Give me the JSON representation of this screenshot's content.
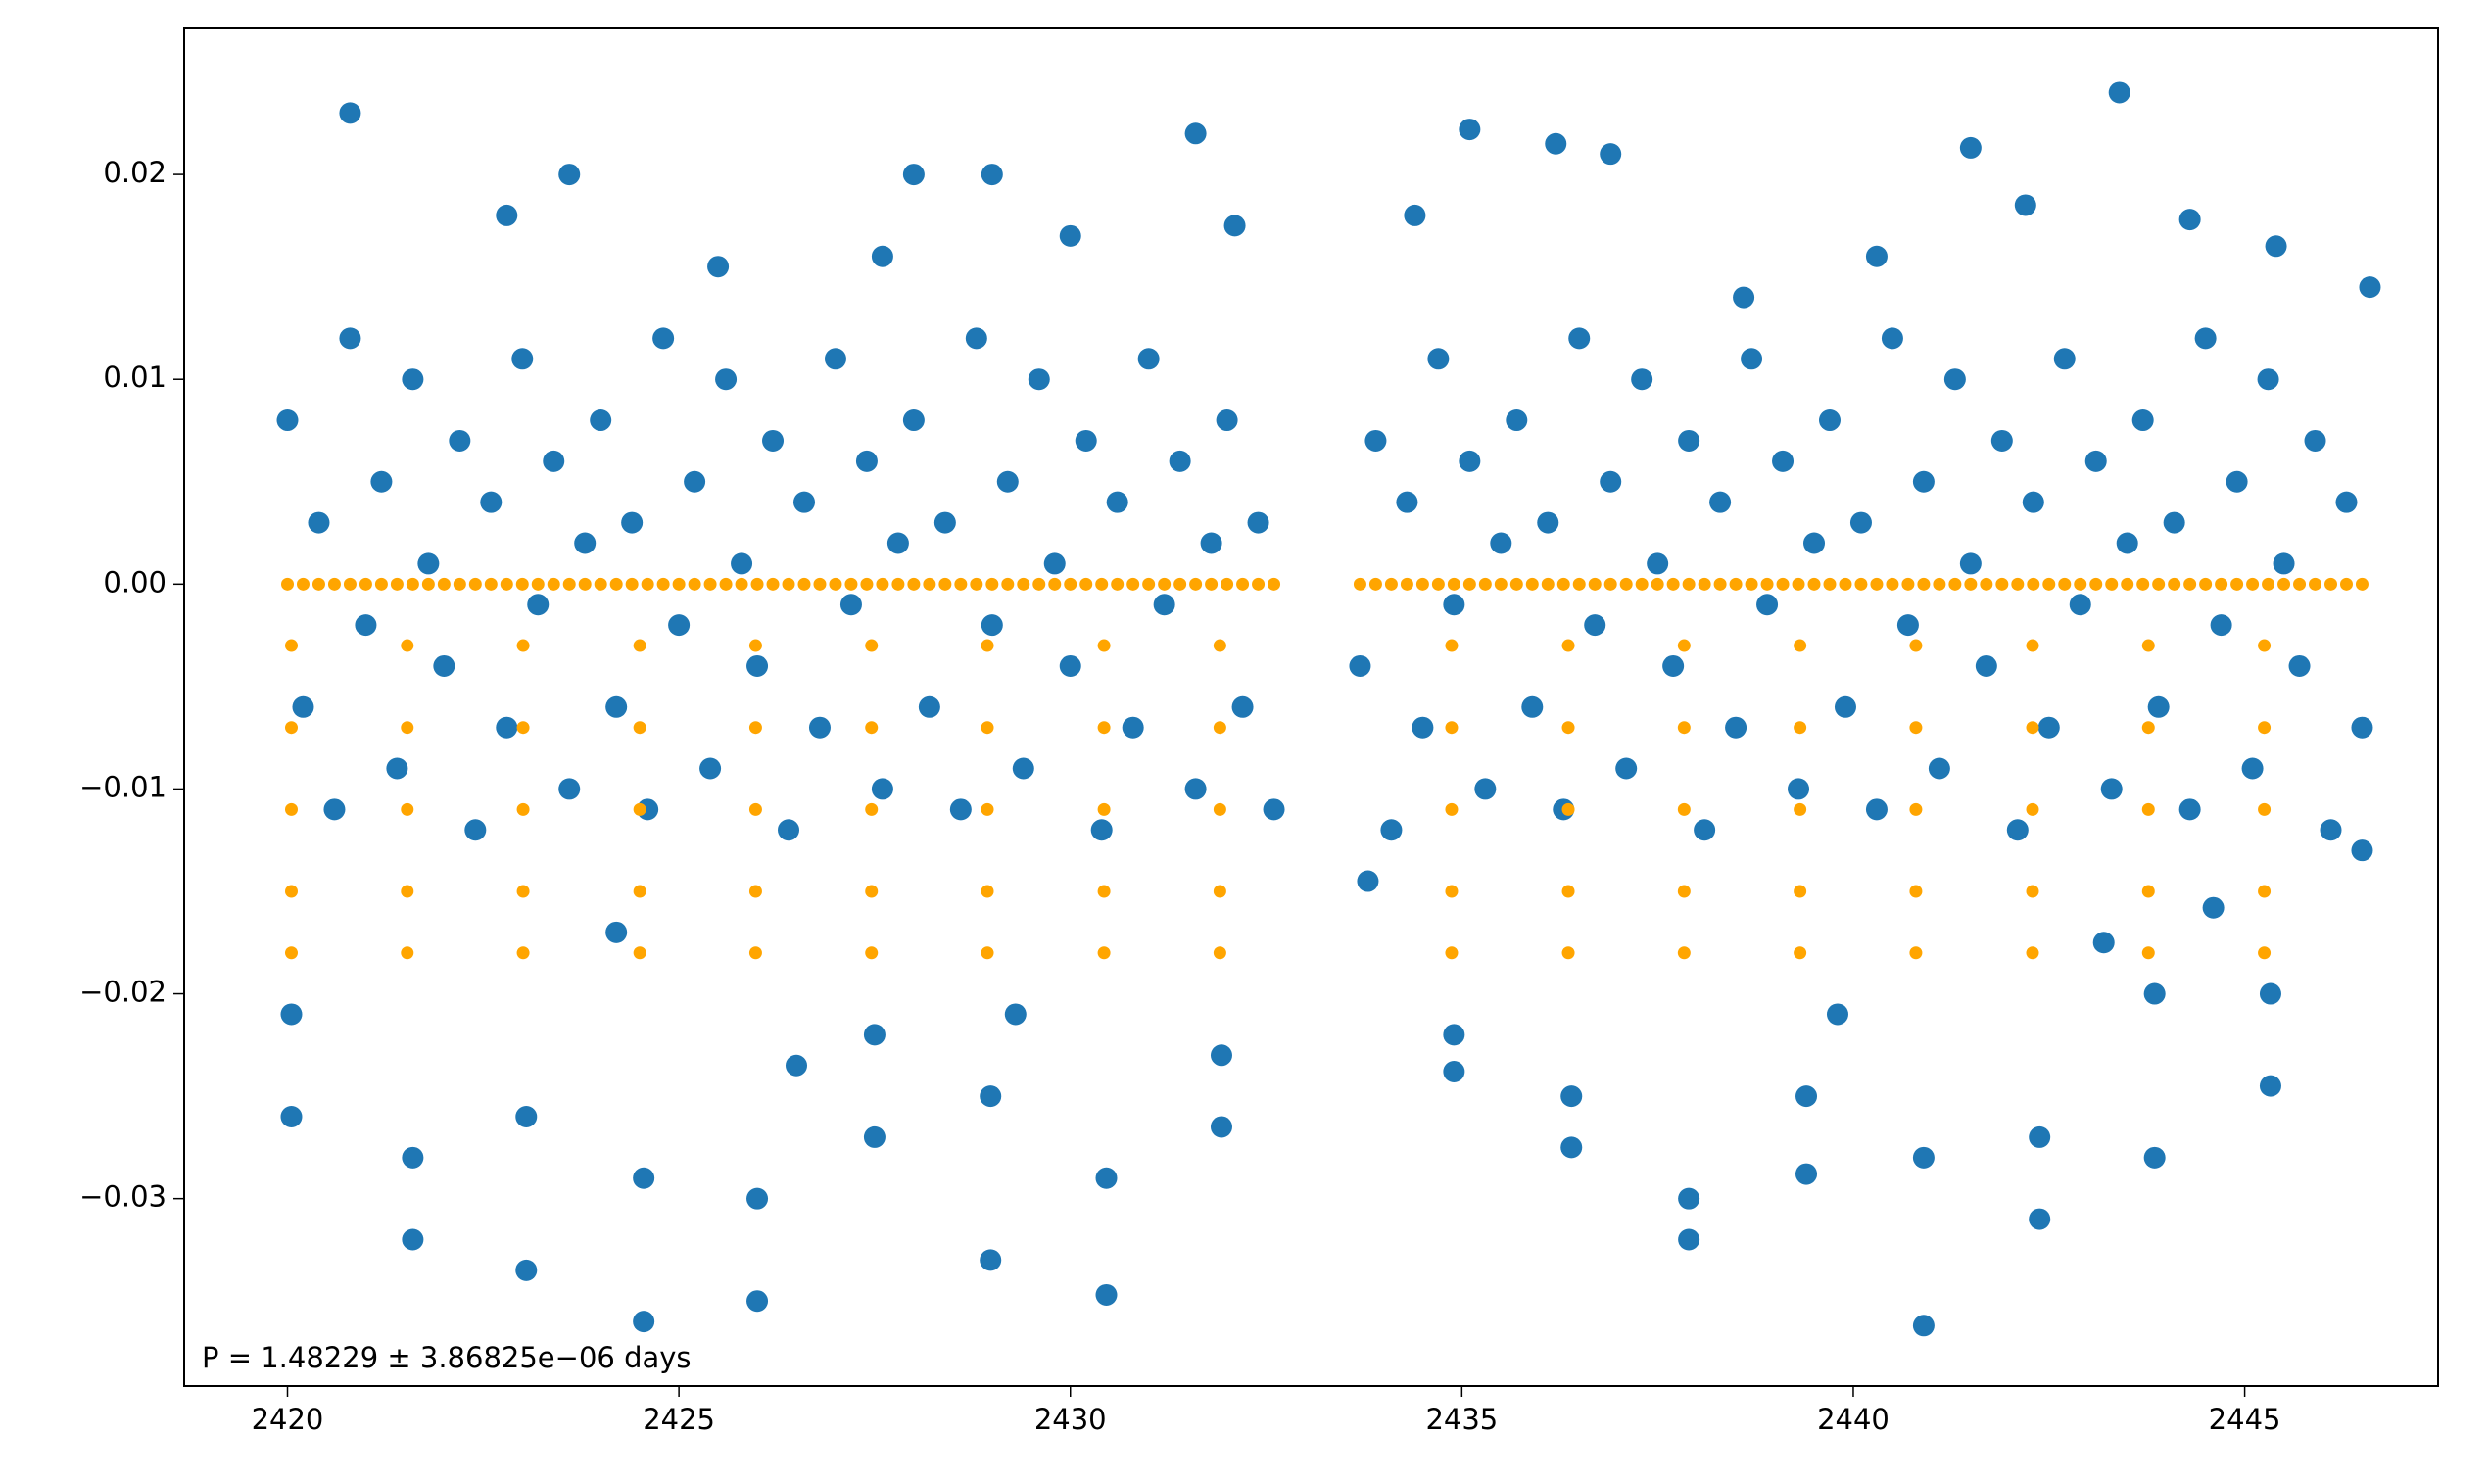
{
  "chart_data": {
    "type": "scatter",
    "annotation": "P = 1.48229 ± 3.86825e−06 days",
    "xlim": [
      2418.68,
      2447.47
    ],
    "ylim": [
      -0.03915,
      0.02713
    ],
    "xticks": [
      2420,
      2425,
      2430,
      2435,
      2440,
      2445
    ],
    "yticks": [
      {
        "value": -0.03,
        "label": "−0.03"
      },
      {
        "value": -0.02,
        "label": "−0.02"
      },
      {
        "value": -0.01,
        "label": "−0.01"
      },
      {
        "value": 0,
        "label": "0.00"
      },
      0.01,
      0.02
    ],
    "series": [
      {
        "color": "#1f77b4",
        "x": [
          2420,
          2420.2,
          2420.4,
          2420.6,
          2420.8,
          2421,
          2421.2,
          2421.4,
          2421.6,
          2421.8,
          2422,
          2422.2,
          2422.4,
          2422.6,
          2422.8,
          2423,
          2423.2,
          2423.4,
          2423.6,
          2423.8,
          2424,
          2424.2,
          2424.4,
          2424.6,
          2424.8,
          2425,
          2425.2,
          2425.4,
          2425.6,
          2425.8,
          2426,
          2426.2,
          2426.4,
          2426.6,
          2426.8,
          2427,
          2427.2,
          2427.4,
          2427.6,
          2427.8,
          2428,
          2428.2,
          2428.4,
          2428.6,
          2428.8,
          2429,
          2429.2,
          2429.4,
          2429.6,
          2429.8,
          2430,
          2430.2,
          2430.4,
          2430.6,
          2430.8,
          2431,
          2431.2,
          2431.4,
          2431.6,
          2431.8,
          2432,
          2432.2,
          2432.4,
          2432.6,
          2433.7,
          2433.9,
          2434.1,
          2434.3,
          2434.5,
          2434.7,
          2434.9,
          2435.1,
          2435.3,
          2435.5,
          2435.7,
          2435.9,
          2436.1,
          2436.3,
          2436.5,
          2436.7,
          2436.9,
          2437.1,
          2437.3,
          2437.5,
          2437.7,
          2437.9,
          2438.1,
          2438.3,
          2438.5,
          2438.7,
          2438.9,
          2439.1,
          2439.3,
          2439.5,
          2439.7,
          2439.9,
          2440.1,
          2440.3,
          2440.5,
          2440.7,
          2440.9,
          2441.1,
          2441.3,
          2441.5,
          2441.7,
          2441.9,
          2442.1,
          2442.3,
          2442.5,
          2442.7,
          2442.9,
          2443.1,
          2443.3,
          2443.5,
          2443.7,
          2443.9,
          2444.1,
          2444.3,
          2444.5,
          2444.7,
          2444.9,
          2445.1,
          2445.3,
          2445.5,
          2445.7,
          2445.9,
          2446.1,
          2446.3,
          2446.5
        ],
        "values": [
          0.008,
          -0.006,
          0.003,
          -0.011,
          0.012,
          -0.002,
          0.005,
          -0.009,
          0.01,
          0.001,
          -0.004,
          0.007,
          -0.012,
          0.004,
          -0.007,
          0.011,
          -0.001,
          0.006,
          -0.01,
          0.002,
          0.008,
          -0.006,
          0.003,
          -0.011,
          0.012,
          -0.002,
          0.005,
          -0.009,
          0.01,
          0.001,
          -0.004,
          0.007,
          -0.012,
          0.004,
          -0.007,
          0.011,
          -0.001,
          0.006,
          -0.01,
          0.002,
          0.008,
          -0.006,
          0.003,
          -0.011,
          0.012,
          -0.002,
          0.005,
          -0.009,
          0.01,
          0.001,
          -0.004,
          0.007,
          -0.012,
          0.004,
          -0.007,
          0.011,
          -0.001,
          0.006,
          -0.01,
          0.002,
          0.008,
          -0.006,
          0.003,
          -0.011,
          -0.004,
          0.007,
          -0.012,
          0.004,
          -0.007,
          0.011,
          -0.001,
          0.006,
          -0.01,
          0.002,
          0.008,
          -0.006,
          0.003,
          -0.011,
          0.012,
          -0.002,
          0.005,
          -0.009,
          0.01,
          0.001,
          -0.004,
          0.007,
          -0.012,
          0.004,
          -0.007,
          0.011,
          -0.001,
          0.006,
          -0.01,
          0.002,
          0.008,
          -0.006,
          0.003,
          -0.011,
          0.012,
          -0.002,
          0.005,
          -0.009,
          0.01,
          0.001,
          -0.004,
          0.007,
          -0.012,
          0.004,
          -0.007,
          0.011,
          -0.001,
          0.006,
          -0.01,
          0.002,
          0.008,
          -0.006,
          0.003,
          -0.011,
          0.012,
          -0.002,
          0.005,
          -0.009,
          0.01,
          0.001,
          -0.004,
          0.007,
          -0.012,
          0.004,
          -0.007
        ]
      },
      {
        "color": "#1f77b4",
        "x": [
          2420.8,
          2423.6,
          2431.6,
          2435.1,
          2436.2,
          2441.5,
          2443.4,
          2422.8,
          2428,
          2429,
          2425.5,
          2427.6,
          2430,
          2432.1,
          2434.4,
          2436.9,
          2438.6,
          2440.3,
          2442.2,
          2444.3,
          2445.4,
          2446.6,
          2424.2,
          2429.3,
          2433.8,
          2439.8,
          2443.2,
          2444.6,
          2446.5,
          2426.5,
          2420.05,
          2420.05,
          2421.6,
          2421.6,
          2423.05,
          2423.05,
          2424.55,
          2424.55,
          2426,
          2426,
          2427.5,
          2427.5,
          2428.98,
          2428.98,
          2430.46,
          2430.46,
          2431.93,
          2431.93,
          2434.9,
          2434.9,
          2436.4,
          2436.4,
          2437.9,
          2437.9,
          2439.4,
          2439.4,
          2440.9,
          2440.9,
          2442.38,
          2442.38,
          2443.85,
          2443.85,
          2445.33,
          2445.33
        ],
        "values": [
          0.023,
          0.02,
          0.022,
          0.0222,
          0.0215,
          0.0213,
          0.024,
          0.018,
          0.02,
          0.02,
          0.0155,
          0.016,
          0.017,
          0.0175,
          0.018,
          0.021,
          0.014,
          0.016,
          0.0185,
          0.0178,
          0.0165,
          0.0145,
          -0.017,
          -0.021,
          -0.0145,
          -0.021,
          -0.0175,
          -0.0158,
          -0.013,
          -0.0235,
          -0.021,
          -0.026,
          -0.028,
          -0.032,
          -0.026,
          -0.0335,
          -0.029,
          -0.036,
          -0.03,
          -0.035,
          -0.022,
          -0.027,
          -0.025,
          -0.033,
          -0.029,
          -0.0347,
          -0.023,
          -0.0265,
          -0.022,
          -0.0238,
          -0.025,
          -0.0275,
          -0.03,
          -0.032,
          -0.025,
          -0.0288,
          -0.028,
          -0.0362,
          -0.027,
          -0.031,
          -0.02,
          -0.028,
          -0.02,
          -0.0245
        ]
      },
      {
        "color": "#ffa500",
        "x": [
          2420,
          2420.2,
          2420.4,
          2420.6,
          2420.8,
          2421,
          2421.2,
          2421.4,
          2421.6,
          2421.8,
          2422,
          2422.2,
          2422.4,
          2422.6,
          2422.8,
          2423,
          2423.2,
          2423.4,
          2423.6,
          2423.8,
          2424,
          2424.2,
          2424.4,
          2424.6,
          2424.8,
          2425,
          2425.2,
          2425.4,
          2425.6,
          2425.8,
          2426,
          2426.2,
          2426.4,
          2426.6,
          2426.8,
          2427,
          2427.2,
          2427.4,
          2427.6,
          2427.8,
          2428,
          2428.2,
          2428.4,
          2428.6,
          2428.8,
          2429,
          2429.2,
          2429.4,
          2429.6,
          2429.8,
          2430,
          2430.2,
          2430.4,
          2430.6,
          2430.8,
          2431,
          2431.2,
          2431.4,
          2431.6,
          2431.8,
          2432,
          2432.2,
          2432.4,
          2432.6,
          2433.7,
          2433.9,
          2434.1,
          2434.3,
          2434.5,
          2434.7,
          2434.9,
          2435.1,
          2435.3,
          2435.5,
          2435.7,
          2435.9,
          2436.1,
          2436.3,
          2436.5,
          2436.7,
          2436.9,
          2437.1,
          2437.3,
          2437.5,
          2437.7,
          2437.9,
          2438.1,
          2438.3,
          2438.5,
          2438.7,
          2438.9,
          2439.1,
          2439.3,
          2439.5,
          2439.7,
          2439.9,
          2440.1,
          2440.3,
          2440.5,
          2440.7,
          2440.9,
          2441.1,
          2441.3,
          2441.5,
          2441.7,
          2441.9,
          2442.1,
          2442.3,
          2442.5,
          2442.7,
          2442.9,
          2443.1,
          2443.3,
          2443.5,
          2443.7,
          2443.9,
          2444.1,
          2444.3,
          2444.5,
          2444.7,
          2444.9,
          2445.1,
          2445.3,
          2445.5,
          2445.7,
          2445.9,
          2446.1,
          2446.3,
          2446.5
        ],
        "values": [
          0,
          0,
          0,
          0,
          0,
          0,
          0,
          0,
          0,
          0,
          0,
          0,
          0,
          0,
          0,
          0,
          0,
          0,
          0,
          0,
          0,
          0,
          0,
          0,
          0,
          0,
          0,
          0,
          0,
          0,
          0,
          0,
          0,
          0,
          0,
          0,
          0,
          0,
          0,
          0,
          0,
          0,
          0,
          0,
          0,
          0,
          0,
          0,
          0,
          0,
          0,
          0,
          0,
          0,
          0,
          0,
          0,
          0,
          0,
          0,
          0,
          0,
          0,
          0,
          0,
          0,
          0,
          0,
          0,
          0,
          0,
          0,
          0,
          0,
          0,
          0,
          0,
          0,
          0,
          0,
          0,
          0,
          0,
          0,
          0,
          0,
          0,
          0,
          0,
          0,
          0,
          0,
          0,
          0,
          0,
          0,
          0,
          0,
          0,
          0,
          0,
          0,
          0,
          0,
          0,
          0,
          0,
          0,
          0,
          0,
          0,
          0,
          0,
          0,
          0,
          0,
          0,
          0,
          0,
          0,
          0,
          0,
          0,
          0,
          0,
          0,
          0,
          0,
          0
        ]
      },
      {
        "color": "#ffa500",
        "x": [
          2420.05,
          2420.05,
          2420.05,
          2420.05,
          2420.05,
          2421.53,
          2421.53,
          2421.53,
          2421.53,
          2421.53,
          2423.01,
          2423.01,
          2423.01,
          2423.01,
          2423.01,
          2424.5,
          2424.5,
          2424.5,
          2424.5,
          2424.5,
          2425.98,
          2425.98,
          2425.98,
          2425.98,
          2425.98,
          2427.46,
          2427.46,
          2427.46,
          2427.46,
          2427.46,
          2428.94,
          2428.94,
          2428.94,
          2428.94,
          2428.94,
          2430.43,
          2430.43,
          2430.43,
          2430.43,
          2430.43,
          2431.91,
          2431.91,
          2431.91,
          2431.91,
          2431.91,
          2434.87,
          2434.87,
          2434.87,
          2434.87,
          2434.87,
          2436.36,
          2436.36,
          2436.36,
          2436.36,
          2436.36,
          2437.84,
          2437.84,
          2437.84,
          2437.84,
          2437.84,
          2439.32,
          2439.32,
          2439.32,
          2439.32,
          2439.32,
          2440.8,
          2440.8,
          2440.8,
          2440.8,
          2440.8,
          2442.29,
          2442.29,
          2442.29,
          2442.29,
          2442.29,
          2443.77,
          2443.77,
          2443.77,
          2443.77,
          2443.77,
          2445.25,
          2445.25,
          2445.25,
          2445.25,
          2445.25
        ],
        "values": [
          -0.003,
          -0.007,
          -0.011,
          -0.015,
          -0.018,
          -0.003,
          -0.007,
          -0.011,
          -0.015,
          -0.018,
          -0.003,
          -0.007,
          -0.011,
          -0.015,
          -0.018,
          -0.003,
          -0.007,
          -0.011,
          -0.015,
          -0.018,
          -0.003,
          -0.007,
          -0.011,
          -0.015,
          -0.018,
          -0.003,
          -0.007,
          -0.011,
          -0.015,
          -0.018,
          -0.003,
          -0.007,
          -0.011,
          -0.015,
          -0.018,
          -0.003,
          -0.007,
          -0.011,
          -0.015,
          -0.018,
          -0.003,
          -0.007,
          -0.011,
          -0.015,
          -0.018,
          -0.003,
          -0.007,
          -0.011,
          -0.015,
          -0.018,
          -0.003,
          -0.007,
          -0.011,
          -0.015,
          -0.018,
          -0.003,
          -0.007,
          -0.011,
          -0.015,
          -0.018,
          -0.003,
          -0.007,
          -0.011,
          -0.015,
          -0.018,
          -0.003,
          -0.007,
          -0.011,
          -0.015,
          -0.018,
          -0.003,
          -0.007,
          -0.011,
          -0.015,
          -0.018,
          -0.003,
          -0.007,
          -0.011,
          -0.015,
          -0.018,
          -0.003,
          -0.007,
          -0.011,
          -0.015,
          -0.018
        ]
      }
    ]
  }
}
